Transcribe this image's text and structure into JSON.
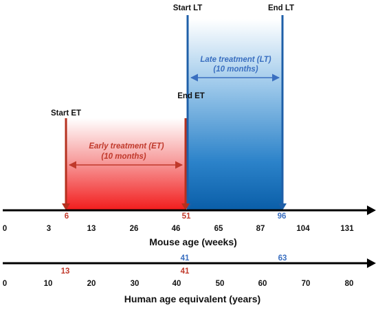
{
  "late_treatment": {
    "start_label": "Start LT",
    "end_label": "End LT",
    "title": "Late treatment (LT)",
    "duration": "(10 months)",
    "start_mouse": "51",
    "end_mouse": "96",
    "start_human": "41",
    "end_human": "63",
    "color": "#1f6fb8",
    "text_color": "#3a6fc0"
  },
  "early_treatment": {
    "start_label": "Start ET",
    "end_label": "End ET",
    "title": "Early treatment (ET)",
    "duration": "(10 months)",
    "start_mouse": "6",
    "start_human": "13",
    "end_human": "41",
    "color": "#e02020",
    "text_color": "#c0392b"
  },
  "mouse_axis": {
    "label": "Mouse age (weeks)",
    "ticks": [
      "0",
      "3",
      "13",
      "26",
      "46",
      "65",
      "87",
      "104",
      "131"
    ]
  },
  "human_axis": {
    "label": "Human age equivalent (years)",
    "ticks": [
      "0",
      "10",
      "20",
      "30",
      "40",
      "50",
      "60",
      "70",
      "80"
    ]
  }
}
